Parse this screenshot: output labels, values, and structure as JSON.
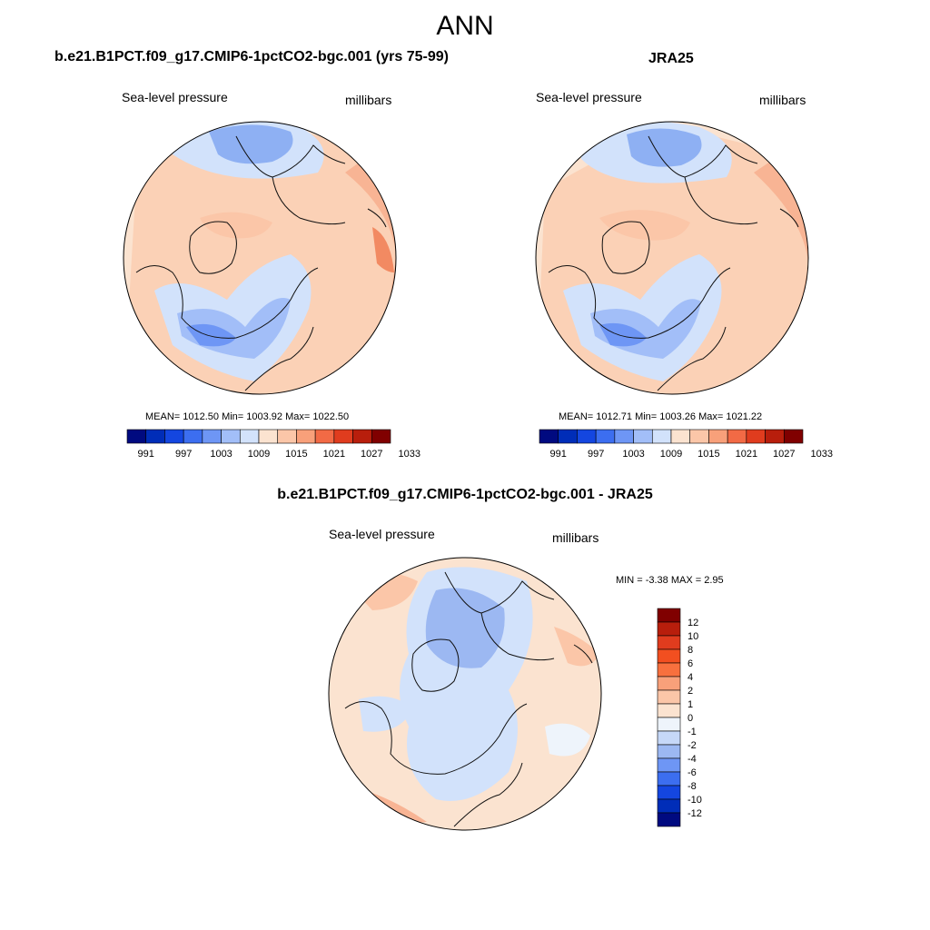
{
  "figure": {
    "title": "ANN",
    "colors": {
      "base_map": "#fbe6d8",
      "map_outline": "#000000",
      "land_stroke": "#111111"
    }
  },
  "panels": {
    "model": {
      "title": "b.e21.B1PCT.f09_g17.CMIP6-1pctCO2-bgc.001 (yrs 75-99)",
      "left_label": "Sea-level pressure",
      "right_label": "millibars",
      "stats": "MEAN= 1012.50   Min= 1003.92   Max= 1022.50"
    },
    "obs": {
      "title": "JRA25",
      "left_label": "Sea-level pressure",
      "right_label": "millibars",
      "stats": "MEAN= 1012.71   Min= 1003.26   Max= 1021.22"
    },
    "diff": {
      "title": "b.e21.B1PCT.f09_g17.CMIP6-1pctCO2-bgc.001 - JRA25",
      "left_label": "Sea-level pressure",
      "right_label": "millibars",
      "stats": "MIN =  -3.38 MAX =   2.95"
    }
  },
  "legend": {
    "abs_ticks": [
      "991",
      "997",
      "1003",
      "1009",
      "1015",
      "1021",
      "1027",
      "1033"
    ],
    "abs_colors": [
      "#000a80",
      "#002db8",
      "#1446e0",
      "#3c6ef0",
      "#6e96f5",
      "#a2bef8",
      "#d2e2fb",
      "#fbe3d0",
      "#fbc6a8",
      "#f8a07a",
      "#f26a45",
      "#e03c1e",
      "#b81e0c",
      "#800000"
    ],
    "diff_ticks": [
      "12",
      "10",
      "8",
      "6",
      "4",
      "2",
      "1",
      "0",
      "-1",
      "-2",
      "-4",
      "-6",
      "-8",
      "-10",
      "-12"
    ],
    "diff_colors": [
      "#800000",
      "#b81e0c",
      "#e03c1e",
      "#f24f20",
      "#f8703e",
      "#f8a07a",
      "#fbc6a8",
      "#fbe3d0",
      "#eef4fb",
      "#c6d8f8",
      "#9cb8f2",
      "#6e96f5",
      "#3c6ef0",
      "#1446e0",
      "#002db8",
      "#000a80"
    ]
  }
}
